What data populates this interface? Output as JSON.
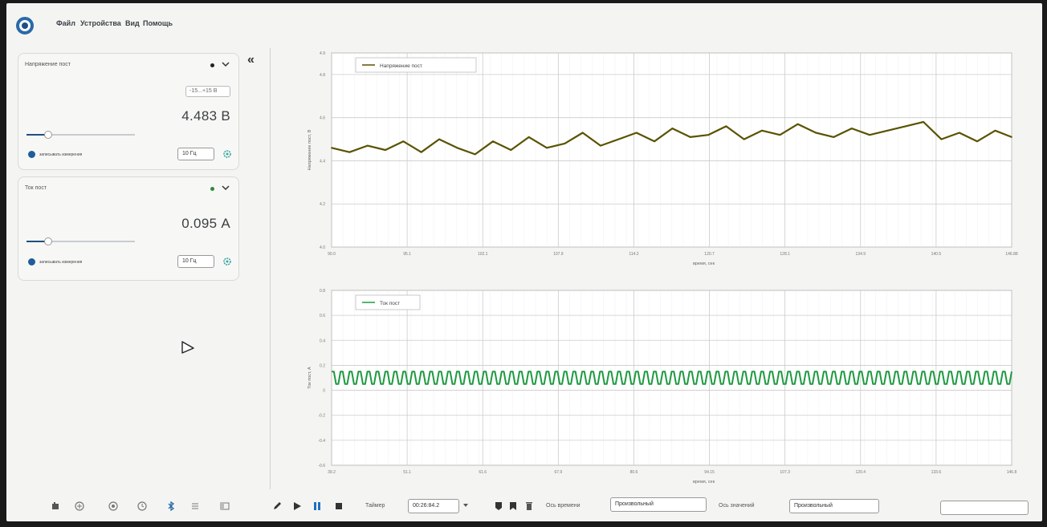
{
  "menu": {
    "items": [
      "Файл",
      "Устройства",
      "Вид",
      "Помощь"
    ]
  },
  "sensors": [
    {
      "title": "Напряжение пост",
      "range": "-15...+15 В",
      "value": "4.483 В",
      "slider_fraction": 0.2,
      "record_label": "записывать измерения",
      "frequency": "10 Гц",
      "dot_color": "#222222"
    },
    {
      "title": "Ток пост",
      "value": "0.095 А",
      "slider_fraction": 0.2,
      "record_label": "записывать измерения",
      "frequency": "10 Гц",
      "dot_color": "#2e8b3e"
    }
  ],
  "collapse_label": "«",
  "chart_data": [
    {
      "type": "line",
      "legend": "Напряжение пост",
      "ylabel": "Напряжение пост, В",
      "xlabel": "время, сек",
      "xlim": [
        90.0,
        146.88
      ],
      "ylim": [
        4.0,
        4.9
      ],
      "x_ticks": [
        "90.0",
        "95.1",
        "102.1",
        "107.9",
        "114.2",
        "120.7",
        "128.1",
        "134.9",
        "140.5",
        "146.88"
      ],
      "y_ticks": [
        "4.0",
        "4.2",
        "4.4",
        "4.6",
        "4.8",
        "4.9"
      ],
      "color": "#5a5200",
      "series": [
        {
          "name": "Напряжение пост",
          "x": [
            90.0,
            91.5,
            93.0,
            94.5,
            96.0,
            97.5,
            99.0,
            100.5,
            102.0,
            103.5,
            105.0,
            106.5,
            108.0,
            109.5,
            111.0,
            112.5,
            114.0,
            115.5,
            117.0,
            118.5,
            120.0,
            121.5,
            123.0,
            124.5,
            126.0,
            127.5,
            129.0,
            130.5,
            132.0,
            133.5,
            135.0,
            136.5,
            138.0,
            139.5,
            141.0,
            142.5,
            144.0,
            145.5,
            146.88
          ],
          "values": [
            4.46,
            4.44,
            4.47,
            4.45,
            4.49,
            4.44,
            4.5,
            4.46,
            4.43,
            4.49,
            4.45,
            4.51,
            4.46,
            4.48,
            4.53,
            4.47,
            4.5,
            4.53,
            4.49,
            4.55,
            4.51,
            4.52,
            4.56,
            4.5,
            4.54,
            4.52,
            4.57,
            4.53,
            4.51,
            4.55,
            4.52,
            4.54,
            4.56,
            4.58,
            4.5,
            4.53,
            4.49,
            4.54,
            4.51
          ]
        }
      ]
    },
    {
      "type": "line",
      "legend": "Ток пост",
      "ylabel": "Ток пост, А",
      "xlabel": "время, сек",
      "xlim": [
        39.2,
        146.8
      ],
      "ylim": [
        -0.6,
        0.8
      ],
      "x_ticks": [
        "39.2",
        "51.1",
        "61.6",
        "67.9",
        "80.6",
        "94.15",
        "107.3",
        "120.4",
        "133.6",
        "146.8"
      ],
      "y_ticks": [
        "-0.6",
        "-0.4",
        "-0.2",
        "0",
        "0.2",
        "0.4",
        "0.6",
        "0.8"
      ],
      "color": "#1e9a40",
      "signal": {
        "center": 0.1,
        "amplitude": 0.05,
        "cycles": 76
      }
    }
  ],
  "toolbar": {
    "timer_label": "Таймер",
    "timer_value": "00:26:84.2",
    "time_axis_label": "Ось времени",
    "time_axis_value": "Произвольный",
    "value_axis_label": "Ось значений",
    "value_axis_value": "Произвольный"
  }
}
